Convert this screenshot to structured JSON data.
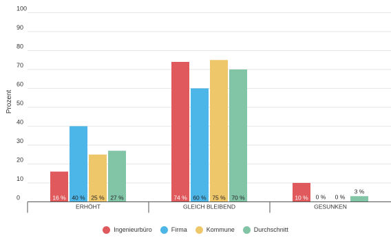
{
  "chart_data": {
    "type": "bar",
    "title": "",
    "xlabel": "",
    "ylabel": "Prozent",
    "ylim": [
      0,
      100
    ],
    "yticks": [
      0,
      10,
      20,
      30,
      40,
      50,
      60,
      70,
      80,
      90,
      100
    ],
    "grid": true,
    "legend_position": "bottom",
    "categories": [
      "ERHÖHT",
      "GLEICH BLEIBEND",
      "GESUNKEN"
    ],
    "series": [
      {
        "name": "Ingenieurbüro",
        "color": "#e05a5d",
        "values": [
          16,
          74,
          10
        ],
        "labels": [
          "16 %",
          "74 %",
          "10 %"
        ]
      },
      {
        "name": "Firma",
        "color": "#4db6e8",
        "values": [
          40,
          60,
          0
        ],
        "labels": [
          "40 %",
          "60 %",
          "0 %"
        ]
      },
      {
        "name": "Kommune",
        "color": "#efc76b",
        "values": [
          25,
          75,
          0
        ],
        "labels": [
          "25 %",
          "75 %",
          "0 %"
        ]
      },
      {
        "name": "Durchschnitt",
        "color": "#82c4a6",
        "values": [
          27,
          70,
          3
        ],
        "labels": [
          "27 %",
          "70 %",
          "3 %"
        ]
      }
    ]
  }
}
